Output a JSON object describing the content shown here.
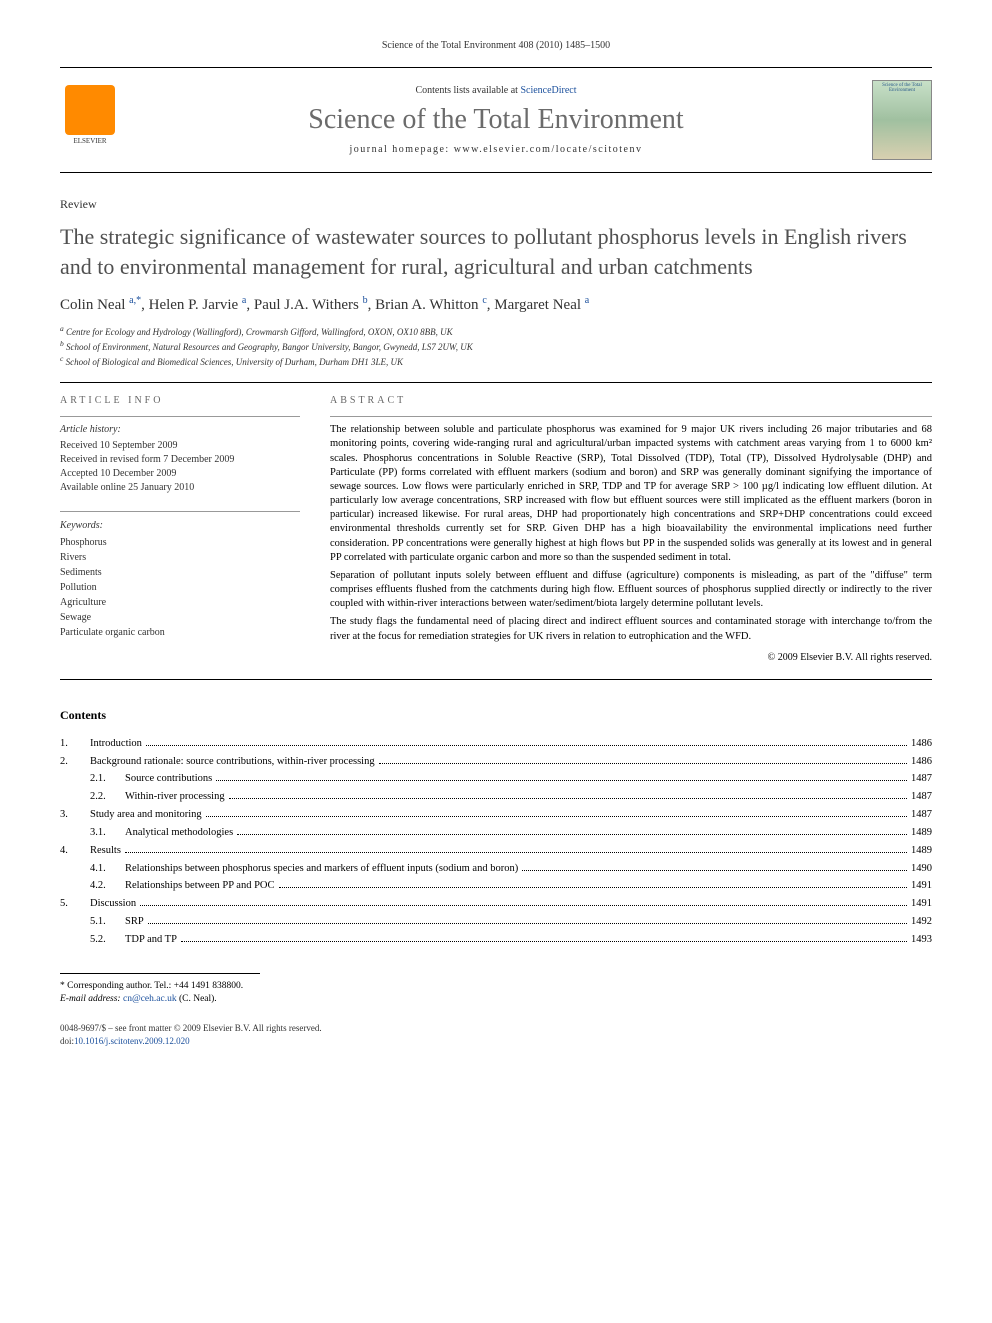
{
  "header": {
    "citation": "Science of the Total Environment 408 (2010) 1485–1500"
  },
  "banner": {
    "publisher_logo_alt": "ELSEVIER",
    "contents_prefix": "Contents lists available at ",
    "contents_link": "ScienceDirect",
    "journal_name": "Science of the Total Environment",
    "homepage_prefix": "journal homepage: ",
    "homepage_url": "www.elsevier.com/locate/scitotenv",
    "cover_title": "Science of the Total Environment"
  },
  "article": {
    "type": "Review",
    "title": "The strategic significance of wastewater sources to pollutant phosphorus levels in English rivers and to environmental management for rural, agricultural and urban catchments",
    "authors": [
      {
        "name": "Colin Neal",
        "aff": "a,",
        "corr": "*"
      },
      {
        "name": "Helen P. Jarvie",
        "aff": "a"
      },
      {
        "name": "Paul J.A. Withers",
        "aff": "b"
      },
      {
        "name": "Brian A. Whitton",
        "aff": "c"
      },
      {
        "name": "Margaret Neal",
        "aff": "a"
      }
    ],
    "affiliations": [
      {
        "key": "a",
        "text": "Centre for Ecology and Hydrology (Wallingford), Crowmarsh Gifford, Wallingford, OXON, OX10 8BB, UK"
      },
      {
        "key": "b",
        "text": "School of Environment, Natural Resources and Geography, Bangor University, Bangor, Gwynedd, LS7 2UW, UK"
      },
      {
        "key": "c",
        "text": "School of Biological and Biomedical Sciences, University of Durham, Durham DH1 3LE, UK"
      }
    ]
  },
  "info": {
    "heading": "ARTICLE INFO",
    "history_label": "Article history:",
    "received": "Received 10 September 2009",
    "revised": "Received in revised form 7 December 2009",
    "accepted": "Accepted 10 December 2009",
    "online": "Available online 25 January 2010",
    "keywords_label": "Keywords:",
    "keywords": [
      "Phosphorus",
      "Rivers",
      "Sediments",
      "Pollution",
      "Agriculture",
      "Sewage",
      "Particulate organic carbon"
    ]
  },
  "abstract": {
    "heading": "ABSTRACT",
    "p1": "The relationship between soluble and particulate phosphorus was examined for 9 major UK rivers including 26 major tributaries and 68 monitoring points, covering wide-ranging rural and agricultural/urban impacted systems with catchment areas varying from 1 to 6000 km² scales. Phosphorus concentrations in Soluble Reactive (SRP), Total Dissolved (TDP), Total (TP), Dissolved Hydrolysable (DHP) and Particulate (PP) forms correlated with effluent markers (sodium and boron) and SRP was generally dominant signifying the importance of sewage sources. Low flows were particularly enriched in SRP, TDP and TP for average SRP > 100 µg/l indicating low effluent dilution. At particularly low average concentrations, SRP increased with flow but effluent sources were still implicated as the effluent markers (boron in particular) increased likewise. For rural areas, DHP had proportionately high concentrations and SRP+DHP concentrations could exceed environmental thresholds currently set for SRP. Given DHP has a high bioavailability the environmental implications need further consideration. PP concentrations were generally highest at high flows but PP in the suspended solids was generally at its lowest and in general PP correlated with particulate organic carbon and more so than the suspended sediment in total.",
    "p2": "Separation of pollutant inputs solely between effluent and diffuse (agriculture) components is misleading, as part of the \"diffuse\" term comprises effluents flushed from the catchments during high flow. Effluent sources of phosphorus supplied directly or indirectly to the river coupled with within-river interactions between water/sediment/biota largely determine pollutant levels.",
    "p3": "The study flags the fundamental need of placing direct and indirect effluent sources and contaminated storage with interchange to/from the river at the focus for remediation strategies for UK rivers in relation to eutrophication and the WFD.",
    "copyright": "© 2009 Elsevier B.V. All rights reserved."
  },
  "toc": {
    "heading": "Contents",
    "rows": [
      {
        "num": "1.",
        "indent": false,
        "label": "Introduction",
        "page": "1486"
      },
      {
        "num": "2.",
        "indent": false,
        "label": "Background rationale: source contributions, within-river processing",
        "page": "1486"
      },
      {
        "num": "2.1.",
        "indent": true,
        "label": "Source contributions",
        "page": "1487"
      },
      {
        "num": "2.2.",
        "indent": true,
        "label": "Within-river processing",
        "page": "1487"
      },
      {
        "num": "3.",
        "indent": false,
        "label": "Study area and monitoring",
        "page": "1487"
      },
      {
        "num": "3.1.",
        "indent": true,
        "label": "Analytical methodologies",
        "page": "1489"
      },
      {
        "num": "4.",
        "indent": false,
        "label": "Results",
        "page": "1489"
      },
      {
        "num": "4.1.",
        "indent": true,
        "label": "Relationships between phosphorus species and markers of effluent inputs (sodium and boron)",
        "page": "1490"
      },
      {
        "num": "4.2.",
        "indent": true,
        "label": "Relationships between PP and POC",
        "page": "1491"
      },
      {
        "num": "5.",
        "indent": false,
        "label": "Discussion",
        "page": "1491"
      },
      {
        "num": "5.1.",
        "indent": true,
        "label": "SRP",
        "page": "1492"
      },
      {
        "num": "5.2.",
        "indent": true,
        "label": "TDP and TP",
        "page": "1493"
      }
    ]
  },
  "footnote": {
    "corr_label": "* Corresponding author. Tel.: ",
    "corr_phone": "+44 1491 838800.",
    "email_label": "E-mail address: ",
    "email": "cn@ceh.ac.uk",
    "email_suffix": " (C. Neal)."
  },
  "footer": {
    "line1_a": "0048-9697/$ – see front matter © 2009 Elsevier B.V. All rights reserved.",
    "doi_prefix": "doi:",
    "doi": "10.1016/j.scitotenv.2009.12.020"
  }
}
